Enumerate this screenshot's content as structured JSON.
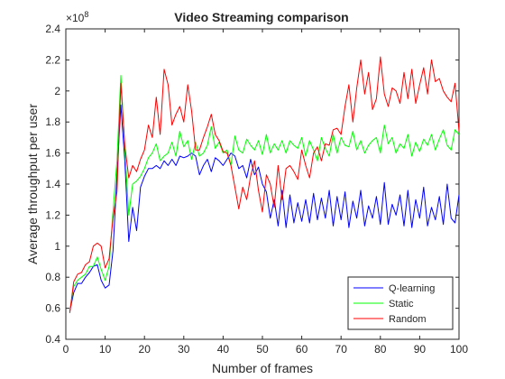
{
  "chart_data": {
    "type": "line",
    "title": "Video Streaming comparison",
    "xlabel": "Number of frames",
    "ylabel": "Average throughput per user",
    "y_exponent_label": "×10",
    "y_exponent_power": "8",
    "xlim": [
      0,
      100
    ],
    "ylim": [
      0.4,
      2.4
    ],
    "y_scale": 100000000,
    "xticks": [
      0,
      10,
      20,
      30,
      40,
      50,
      60,
      70,
      80,
      90,
      100
    ],
    "yticks": [
      0.4,
      0.6,
      0.8,
      1.0,
      1.2,
      1.4,
      1.6,
      1.8,
      2.0,
      2.2,
      2.4
    ],
    "yticklabels": [
      "0.4",
      "0.6",
      "0.8",
      "1",
      "1.2",
      "1.4",
      "1.6",
      "1.8",
      "2",
      "2.2",
      "2.4"
    ],
    "grid": false,
    "legend_position": "bottom-right",
    "x": [
      1,
      2,
      3,
      4,
      5,
      6,
      7,
      8,
      9,
      10,
      11,
      12,
      13,
      14,
      15,
      16,
      17,
      18,
      19,
      20,
      21,
      22,
      23,
      24,
      25,
      26,
      27,
      28,
      29,
      30,
      31,
      32,
      33,
      34,
      35,
      36,
      37,
      38,
      39,
      40,
      41,
      42,
      43,
      44,
      45,
      46,
      47,
      48,
      49,
      50,
      51,
      52,
      53,
      54,
      55,
      56,
      57,
      58,
      59,
      60,
      61,
      62,
      63,
      64,
      65,
      66,
      67,
      68,
      69,
      70,
      71,
      72,
      73,
      74,
      75,
      76,
      77,
      78,
      79,
      80,
      81,
      82,
      83,
      84,
      85,
      86,
      87,
      88,
      89,
      90,
      91,
      92,
      93,
      94,
      95,
      96,
      97,
      98,
      99,
      100
    ],
    "series": [
      {
        "name": "Q-learning",
        "color": "#0000ff",
        "values": [
          0.58,
          0.7,
          0.76,
          0.76,
          0.8,
          0.83,
          0.87,
          0.88,
          0.78,
          0.73,
          0.75,
          0.97,
          1.45,
          1.91,
          1.55,
          1.03,
          1.25,
          1.1,
          1.38,
          1.45,
          1.5,
          1.5,
          1.52,
          1.5,
          1.55,
          1.52,
          1.56,
          1.52,
          1.58,
          1.57,
          1.58,
          1.6,
          1.58,
          1.46,
          1.52,
          1.56,
          1.48,
          1.57,
          1.55,
          1.52,
          1.56,
          1.6,
          1.58,
          1.5,
          1.52,
          1.44,
          1.56,
          1.46,
          1.51,
          1.4,
          1.35,
          1.18,
          1.3,
          1.13,
          1.36,
          1.12,
          1.33,
          1.15,
          1.28,
          1.16,
          1.3,
          1.15,
          1.34,
          1.17,
          1.31,
          1.18,
          1.36,
          1.13,
          1.32,
          1.17,
          1.35,
          1.12,
          1.29,
          1.18,
          1.36,
          1.13,
          1.26,
          1.18,
          1.32,
          1.14,
          1.41,
          1.14,
          1.27,
          1.2,
          1.33,
          1.13,
          1.36,
          1.12,
          1.3,
          1.18,
          1.38,
          1.13,
          1.25,
          1.17,
          1.32,
          1.14,
          1.4,
          1.18,
          1.15,
          1.33
        ]
      },
      {
        "name": "Static",
        "color": "#00ff00",
        "values": [
          0.58,
          0.74,
          0.78,
          0.8,
          0.82,
          0.87,
          0.87,
          0.93,
          0.85,
          0.78,
          0.87,
          1.22,
          1.55,
          2.1,
          1.63,
          1.2,
          1.4,
          1.42,
          1.45,
          1.5,
          1.57,
          1.6,
          1.66,
          1.55,
          1.58,
          1.6,
          1.67,
          1.58,
          1.74,
          1.64,
          1.68,
          1.56,
          1.67,
          1.58,
          1.6,
          1.65,
          1.77,
          1.63,
          1.67,
          1.6,
          1.62,
          1.52,
          1.71,
          1.62,
          1.6,
          1.69,
          1.65,
          1.62,
          1.68,
          1.59,
          1.72,
          1.6,
          1.66,
          1.62,
          1.68,
          1.6,
          1.68,
          1.65,
          1.63,
          1.7,
          1.58,
          1.68,
          1.62,
          1.55,
          1.7,
          1.63,
          1.58,
          1.72,
          1.6,
          1.7,
          1.65,
          1.64,
          1.74,
          1.62,
          1.68,
          1.6,
          1.65,
          1.68,
          1.7,
          1.6,
          1.78,
          1.66,
          1.7,
          1.6,
          1.66,
          1.63,
          1.72,
          1.58,
          1.67,
          1.61,
          1.69,
          1.65,
          1.72,
          1.62,
          1.69,
          1.75,
          1.65,
          1.62,
          1.75,
          1.72
        ]
      },
      {
        "name": "Random",
        "color": "#ff0000",
        "values": [
          0.57,
          0.77,
          0.82,
          0.83,
          0.88,
          0.9,
          1.0,
          1.02,
          1.0,
          0.86,
          0.92,
          1.18,
          1.35,
          2.05,
          1.65,
          1.44,
          1.52,
          1.48,
          1.56,
          1.62,
          1.78,
          1.7,
          1.96,
          1.72,
          2.14,
          2.04,
          1.78,
          1.85,
          1.9,
          1.8,
          2.04,
          1.87,
          1.62,
          1.62,
          1.7,
          1.77,
          1.85,
          1.72,
          1.68,
          1.61,
          1.6,
          1.52,
          1.38,
          1.24,
          1.38,
          1.3,
          1.45,
          1.55,
          1.36,
          1.22,
          1.46,
          1.4,
          1.25,
          1.52,
          1.3,
          1.5,
          1.52,
          1.48,
          1.43,
          1.62,
          1.52,
          1.44,
          1.6,
          1.64,
          1.55,
          1.66,
          1.65,
          1.75,
          1.76,
          1.72,
          1.9,
          2.04,
          1.8,
          2.02,
          2.2,
          1.98,
          2.12,
          1.88,
          1.95,
          2.22,
          1.98,
          1.9,
          2.02,
          2.0,
          1.92,
          2.12,
          1.95,
          2.14,
          1.92,
          2.04,
          2.15,
          1.98,
          2.2,
          2.06,
          2.08,
          2.0,
          1.96,
          1.93,
          2.05,
          1.74
        ]
      }
    ]
  }
}
